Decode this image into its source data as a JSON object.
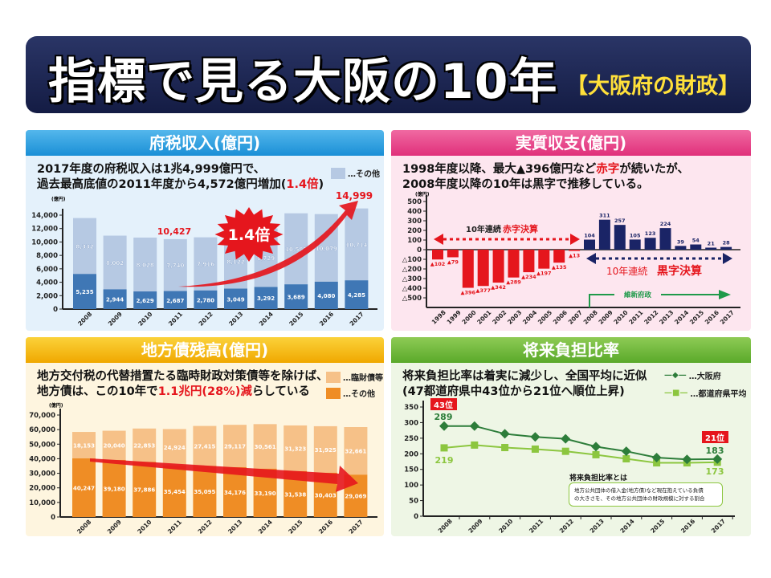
{
  "title": {
    "main": "指標で見る大阪の10年",
    "sub": "【大阪府の財政】"
  },
  "colors": {
    "blue_dark": "#3f77b5",
    "blue_light": "#b6c9e3",
    "red": "#e5161d",
    "navy": "#1a2466",
    "orange_dark": "#ef8d25",
    "orange_light": "#f6c188",
    "green_dark": "#2d7d3a",
    "green_light": "#8cc63f"
  },
  "panels": [
    {
      "header": "府税収入(億円)",
      "lead1": "2017年度の府税収入は1兆4,999億円で、",
      "lead2a": "過去最高底値の2011年度から4,572億円増加(",
      "lead2b": "1.4倍",
      "lead2c": ")",
      "legend": [
        "…その他"
      ]
    },
    {
      "header": "実質収支(億円)",
      "lead1a": "1998年度以降、最大▲396億円など",
      "lead1b": "赤字",
      "lead1c": "が続いたが、",
      "lead2": "2008年度以降の10年は黒字で推移している。"
    },
    {
      "header": "地方債残高(億円)",
      "lead1": "地方交付税の代替措置たる臨時財政対策債等を除けば、",
      "lead2a": "地方債は、この10年で",
      "lead2b": "1.1兆円(28%)減",
      "lead2c": "らしている",
      "legend": [
        "…臨財債等",
        "…その他"
      ]
    },
    {
      "header": "将来負担比率",
      "lead1": "将来負担比率は着実に減少し、全国平均に近似",
      "lead2": "(47都道府県中43位から21位へ順位上昇)",
      "legend": [
        "…大阪府",
        "…都道府県平均"
      ],
      "note_title": "将来負担比率とは",
      "note1": "地方公共団体の借入金(地方債)など現在抱えている負債",
      "note2": "の大きさを、その地方公共団体の財政規模に対する割合"
    }
  ],
  "chart_data": [
    {
      "type": "bar",
      "stacked": true,
      "unit": "(億円)",
      "categories": [
        "2008",
        "2009",
        "2010",
        "2011",
        "2012",
        "2013",
        "2014",
        "2015",
        "2016",
        "2017"
      ],
      "series": [
        {
          "values": [
            5235,
            2944,
            2629,
            2687,
            2780,
            3049,
            3292,
            3689,
            4080,
            4285
          ],
          "labels": [
            "5,235",
            "2,944",
            "2,629",
            "2,687",
            "2,780",
            "3,049",
            "3,292",
            "3,689",
            "4,080",
            "4,285"
          ]
        },
        {
          "name": "…その他",
          "values": [
            8332,
            8002,
            8028,
            7740,
            7916,
            8122,
            8729,
            10587,
            10079,
            10714
          ],
          "labels": [
            "8,332",
            "8,002",
            "8,028",
            "7,740",
            "7,916",
            "8,122",
            "8,729",
            "10,587",
            "10,079",
            "10,714"
          ]
        }
      ],
      "ylim": [
        0,
        14000
      ],
      "yticks": [
        "0",
        "2,000",
        "4,000",
        "6,000",
        "8,000",
        "10,000",
        "12,000",
        "14,000"
      ],
      "annotations": {
        "total_2011": "10,427",
        "total_2017": "14,999",
        "ratio": "1.4倍"
      }
    },
    {
      "type": "bar",
      "unit": "(億円)",
      "categories": [
        "1998",
        "1999",
        "2000",
        "2001",
        "2002",
        "2003",
        "2004",
        "2005",
        "2006",
        "2007",
        "2008",
        "2009",
        "2010",
        "2011",
        "2012",
        "2013",
        "2014",
        "2015",
        "2016",
        "2017"
      ],
      "values": [
        -102,
        -79,
        -396,
        -377,
        -342,
        -289,
        -234,
        -197,
        -135,
        -13,
        104,
        311,
        257,
        105,
        123,
        224,
        39,
        54,
        21,
        28
      ],
      "labels": [
        "▲102",
        "▲79",
        "▲396",
        "▲377",
        "▲342",
        "▲289",
        "▲234",
        "▲197",
        "▲135",
        "▲13",
        "104",
        "311",
        "257",
        "105",
        "123",
        "224",
        "39",
        "54",
        "21",
        "28"
      ],
      "ylim": [
        -500,
        500
      ],
      "yticks": [
        "500",
        "400",
        "300",
        "200",
        "100",
        "0",
        "△100",
        "△200",
        "△300",
        "△400",
        "△500"
      ],
      "annotations": {
        "deficit_a": "10年連続 ",
        "deficit_b": "赤字決算",
        "surplus_a": "10年連続 ",
        "surplus_b": "黒字決算",
        "ishin": "維新府政"
      }
    },
    {
      "type": "bar",
      "stacked": true,
      "unit": "(億円)",
      "categories": [
        "2008",
        "2009",
        "2010",
        "2011",
        "2012",
        "2013",
        "2014",
        "2015",
        "2016",
        "2017"
      ],
      "series": [
        {
          "name": "…その他",
          "values": [
            40247,
            39180,
            37886,
            35454,
            35095,
            34176,
            33190,
            31538,
            30403,
            29069
          ],
          "labels": [
            "40,247",
            "39,180",
            "37,886",
            "35,454",
            "35,095",
            "34,176",
            "33,190",
            "31,538",
            "30,403",
            "29,069"
          ]
        },
        {
          "name": "…臨財債等",
          "values": [
            18153,
            20040,
            22853,
            24924,
            27415,
            29117,
            30561,
            31323,
            31925,
            32661
          ],
          "labels": [
            "18,153",
            "20,040",
            "22,853",
            "24,924",
            "27,415",
            "29,117",
            "30,561",
            "31,323",
            "31,925",
            "32,661"
          ]
        }
      ],
      "ylim": [
        0,
        70000
      ],
      "yticks": [
        "0",
        "10,000",
        "20,000",
        "30,000",
        "40,000",
        "50,000",
        "60,000",
        "70,000"
      ]
    },
    {
      "type": "line",
      "categories": [
        "2008",
        "2009",
        "2010",
        "2011",
        "2012",
        "2013",
        "2014",
        "2015",
        "2016",
        "2017"
      ],
      "series": [
        {
          "name": "…大阪府",
          "values": [
            289,
            289,
            264,
            254,
            248,
            223,
            208,
            188,
            182,
            183
          ]
        },
        {
          "name": "…都道府県平均",
          "values": [
            219,
            228,
            220,
            215,
            208,
            197,
            184,
            171,
            171,
            173
          ]
        }
      ],
      "ylim": [
        0,
        350
      ],
      "yticks": [
        "0",
        "50",
        "100",
        "150",
        "200",
        "250",
        "300",
        "350"
      ],
      "annotations": {
        "rank_start": "43位",
        "rank_end": "21位",
        "osaka_start": "289",
        "osaka_end": "183",
        "avg_start": "219",
        "avg_end": "173"
      }
    }
  ]
}
